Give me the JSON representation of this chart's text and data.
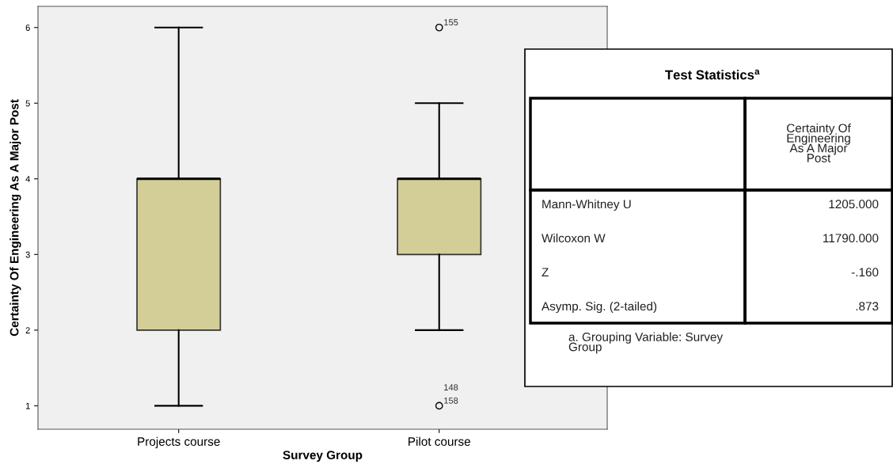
{
  "chart_data": {
    "type": "box",
    "xlabel": "Survey Group",
    "ylabel": "Certainty Of Engineering As A Major Post",
    "categories": [
      "Projects course",
      "Pilot course"
    ],
    "color": "#d3ce97",
    "boxes": [
      {
        "low": 1,
        "q1": 2,
        "median": 4,
        "q3": 4,
        "high": 6
      },
      {
        "low": 2,
        "q1": 3,
        "median": 4,
        "q3": 4,
        "high": 5,
        "outliers": [
          6,
          1
        ]
      }
    ],
    "ylim": [
      0.69,
      6.28
    ],
    "yticks": [
      1,
      2,
      3,
      4,
      5,
      6
    ],
    "grid": false,
    "annotations": [
      "155",
      "158",
      "148",
      "Test Statistics$^{a}$",
      "Certainty Of\nEngineering\nAs A Major\nPost",
      "Mann-Whitney U",
      "1205.000",
      "Wilcoxon W",
      "11790.000",
      "Z",
      "-.160",
      "Asymp. Sig. (2-tailed)",
      ".873",
      "a. Grouping Variable: Survey\nGroup"
    ]
  }
}
